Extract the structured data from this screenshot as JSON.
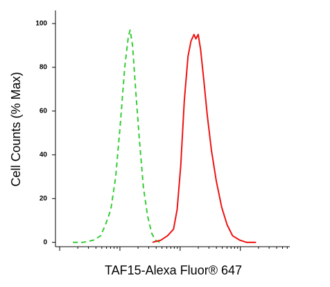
{
  "chart_data": {
    "type": "line",
    "x_label": "TAF15-Alexa Fluor® 647",
    "y_label": "Cell Counts (% Max)",
    "xlim": [
      -0.07,
      3.82
    ],
    "xticks": [
      0,
      0.301,
      0.477,
      0.602,
      0.699,
      0.778,
      0.845,
      0.903,
      0.954,
      1,
      1.301,
      1.477,
      1.602,
      1.699,
      1.778,
      1.845,
      1.903,
      1.954,
      2,
      2.301,
      2.477,
      2.602,
      2.699,
      2.778,
      2.845,
      2.903,
      2.954,
      3,
      3.301,
      3.477,
      3.602,
      3.699,
      3.778
    ],
    "ylim": [
      -2,
      106
    ],
    "yticks": [
      0,
      20,
      40,
      60,
      80,
      100
    ],
    "series": [
      {
        "color": "#33cc33",
        "dashed": true,
        "x": [
          0.22,
          0.39,
          0.56,
          0.68,
          0.76,
          0.85,
          0.93,
          1.01,
          1.08,
          1.14,
          1.17,
          1.21,
          1.26,
          1.32,
          1.39,
          1.46,
          1.53,
          1.59,
          1.66
        ],
        "values": [
          0,
          0,
          1,
          3,
          8,
          15,
          30,
          55,
          80,
          94,
          97,
          90,
          70,
          48,
          25,
          12,
          4,
          1,
          0
        ]
      },
      {
        "color": "#ee1111",
        "dashed": false,
        "x": [
          1.54,
          1.68,
          1.79,
          1.89,
          1.95,
          2.01,
          2.07,
          2.13,
          2.18,
          2.23,
          2.26,
          2.3,
          2.34,
          2.39,
          2.45,
          2.52,
          2.6,
          2.69,
          2.78,
          2.87,
          2.99,
          3.1,
          3.26
        ],
        "values": [
          0,
          1,
          3,
          6,
          15,
          35,
          65,
          85,
          92,
          95,
          93,
          95,
          88,
          75,
          58,
          42,
          28,
          16,
          8,
          3,
          1,
          0,
          0
        ]
      }
    ]
  }
}
